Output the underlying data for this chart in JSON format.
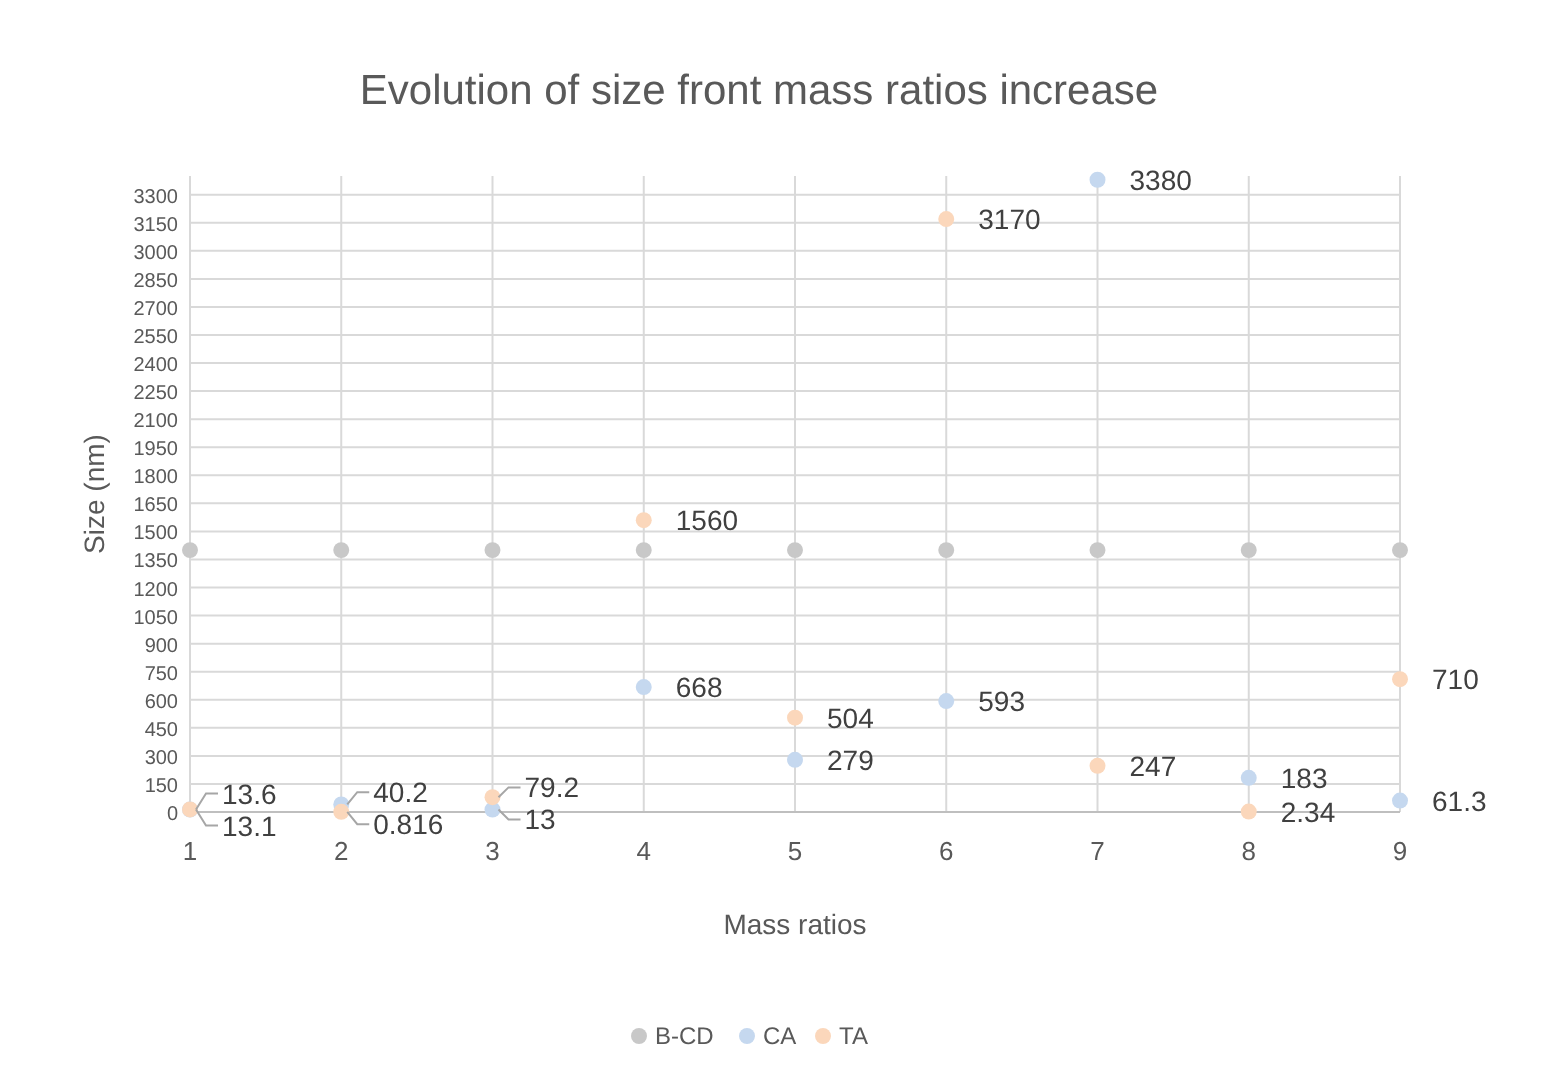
{
  "chart_data": {
    "type": "scatter",
    "title": "Evolution of size front mass ratios increase",
    "xlabel": "Mass ratios",
    "ylabel": "Size (nm)",
    "x": [
      1,
      2,
      3,
      4,
      5,
      6,
      7,
      8,
      9
    ],
    "series": [
      {
        "name": "B-CD",
        "color": "#c8c8c8",
        "values": [
          1400,
          1400,
          1400,
          1400,
          1400,
          1400,
          1400,
          1400,
          1400
        ]
      },
      {
        "name": "CA",
        "color": "#c5d8ef",
        "values": [
          13.1,
          40.2,
          13,
          668,
          279,
          593,
          3380,
          183,
          61.3
        ],
        "value_labels": [
          "13.1",
          "40.2",
          "13",
          "668",
          "279",
          "593",
          "3380",
          "183",
          "61.3"
        ]
      },
      {
        "name": "TA",
        "color": "#fbd7bb",
        "values": [
          13.6,
          0.816,
          79.2,
          1560,
          504,
          3170,
          247,
          2.34,
          710
        ],
        "value_labels": [
          "13.6",
          "0.816",
          "79.2",
          "1560",
          "504",
          "3170",
          "247",
          "2.34",
          "710"
        ]
      }
    ],
    "xlim": [
      1,
      9
    ],
    "xticks": [
      1,
      2,
      3,
      4,
      5,
      6,
      7,
      8,
      9
    ],
    "ylim": [
      0,
      3400
    ],
    "yticks": [
      0,
      150,
      300,
      450,
      600,
      750,
      900,
      1050,
      1200,
      1350,
      1500,
      1650,
      1800,
      1950,
      2100,
      2250,
      2400,
      2550,
      2700,
      2850,
      3000,
      3150,
      3300
    ],
    "grid": true,
    "legend": "bottom",
    "marker": "circle"
  }
}
